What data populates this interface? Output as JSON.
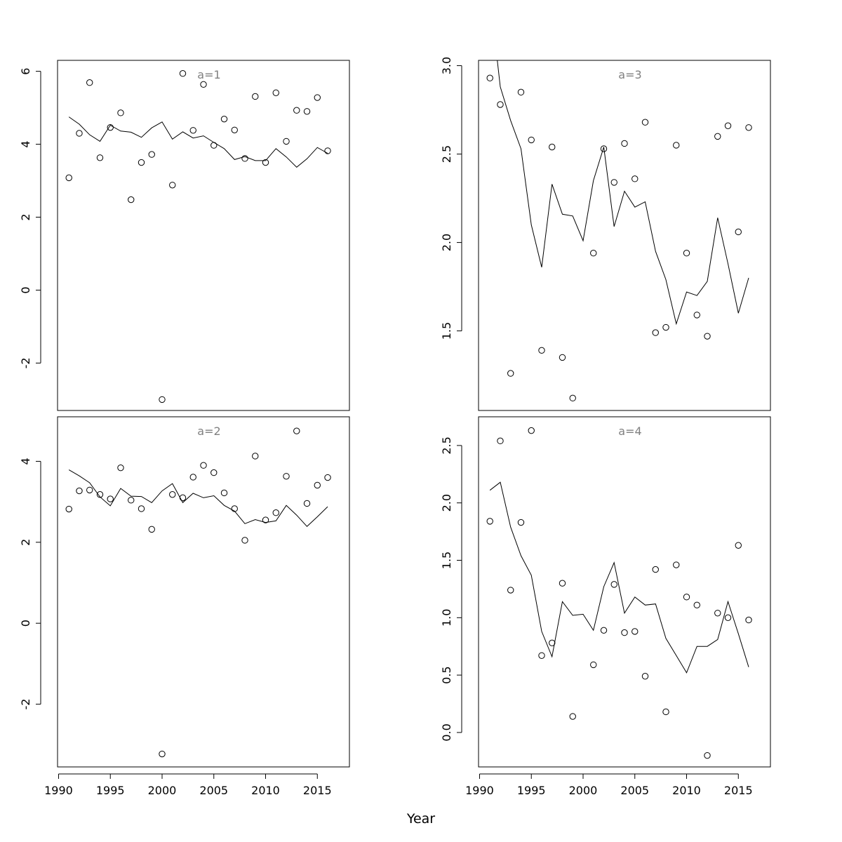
{
  "figure": {
    "xlabel": "Year"
  },
  "chart_data": [
    {
      "type": "scatter",
      "panel_label": "a=1",
      "xlim": [
        1989.9,
        2018.1
      ],
      "ylim": [
        -3.3,
        6.3
      ],
      "xticks": [
        1990,
        1995,
        2000,
        2005,
        2010,
        2015
      ],
      "xtick_labels": [
        "1990",
        "1995",
        "2000",
        "2005",
        "2010",
        "2015"
      ],
      "show_xticks": false,
      "yticks": [
        6,
        4,
        2,
        0,
        -2
      ],
      "ytick_labels": [
        "6",
        "4",
        "2",
        "0",
        "-2"
      ],
      "x": [
        1991,
        1992,
        1993,
        1994,
        1995,
        1996,
        1997,
        1998,
        1999,
        2000,
        2001,
        2002,
        2003,
        2004,
        2005,
        2006,
        2007,
        2008,
        2009,
        2010,
        2011,
        2012,
        2013,
        2014,
        2015,
        2016
      ],
      "observed": [
        3.08,
        4.3,
        5.69,
        3.63,
        4.46,
        4.86,
        2.48,
        3.5,
        3.72,
        -3.0,
        2.88,
        5.94,
        4.38,
        5.64,
        3.97,
        4.69,
        4.39,
        3.61,
        5.31,
        3.5,
        5.41,
        4.08,
        4.93,
        4.9,
        5.28,
        3.82
      ],
      "fitted": [
        4.75,
        4.55,
        4.26,
        4.08,
        4.52,
        4.36,
        4.33,
        4.19,
        4.45,
        4.61,
        4.14,
        4.34,
        4.17,
        4.23,
        4.05,
        3.88,
        3.58,
        3.66,
        3.55,
        3.55,
        3.88,
        3.65,
        3.37,
        3.6,
        3.91,
        3.75
      ]
    },
    {
      "type": "scatter",
      "panel_label": "a=2",
      "xlim": [
        1989.9,
        2018.1
      ],
      "ylim": [
        -3.55,
        5.1
      ],
      "xticks": [
        1990,
        1995,
        2000,
        2005,
        2010,
        2015
      ],
      "xtick_labels": [
        "1990",
        "1995",
        "2000",
        "2005",
        "2010",
        "2015"
      ],
      "show_xticks": true,
      "yticks": [
        4,
        2,
        0,
        -2
      ],
      "ytick_labels": [
        "4",
        "2",
        "0",
        "-2"
      ],
      "x": [
        1991,
        1992,
        1993,
        1994,
        1995,
        1996,
        1997,
        1998,
        1999,
        2000,
        2001,
        2002,
        2003,
        2004,
        2005,
        2006,
        2007,
        2008,
        2009,
        2010,
        2011,
        2012,
        2013,
        2014,
        2015,
        2016
      ],
      "observed": [
        2.82,
        3.27,
        3.29,
        3.18,
        3.07,
        3.84,
        3.04,
        2.83,
        2.32,
        -3.23,
        3.18,
        3.1,
        3.61,
        3.9,
        3.72,
        3.22,
        2.83,
        2.05,
        4.13,
        2.55,
        2.73,
        3.63,
        4.75,
        2.96,
        3.41,
        3.6
      ],
      "fitted": [
        3.79,
        3.64,
        3.47,
        3.12,
        2.9,
        3.33,
        3.14,
        3.13,
        2.98,
        3.27,
        3.45,
        2.98,
        3.21,
        3.1,
        3.15,
        2.91,
        2.77,
        2.46,
        2.56,
        2.49,
        2.53,
        2.91,
        2.67,
        2.39,
        2.63,
        2.88
      ]
    },
    {
      "type": "scatter",
      "panel_label": "a=3",
      "xlim": [
        1989.9,
        2018.1
      ],
      "ylim": [
        1.05,
        3.03
      ],
      "xticks": [
        1990,
        1995,
        2000,
        2005,
        2010,
        2015
      ],
      "xtick_labels": [
        "1990",
        "1995",
        "2000",
        "2005",
        "2010",
        "2015"
      ],
      "show_xticks": false,
      "yticks": [
        3.0,
        2.5,
        2.0,
        1.5
      ],
      "ytick_labels": [
        "3.0",
        "2.5",
        "2.0",
        "1.5"
      ],
      "x": [
        1991,
        1992,
        1993,
        1994,
        1995,
        1996,
        1997,
        1998,
        1999,
        2000,
        2001,
        2002,
        2003,
        2004,
        2005,
        2006,
        2007,
        2008,
        2009,
        2010,
        2011,
        2012,
        2013,
        2014,
        2015,
        2016
      ],
      "observed": [
        2.93,
        2.78,
        1.26,
        2.85,
        2.58,
        1.39,
        2.54,
        1.35,
        1.12,
        null,
        1.94,
        2.53,
        2.34,
        2.56,
        2.36,
        2.68,
        1.49,
        1.52,
        2.55,
        1.94,
        1.59,
        1.47,
        2.6,
        2.66,
        2.06,
        2.65
      ],
      "fitted": [
        3.4,
        2.88,
        2.69,
        2.53,
        2.1,
        1.86,
        2.33,
        2.16,
        2.15,
        2.01,
        2.35,
        2.54,
        2.09,
        2.29,
        2.2,
        2.23,
        1.95,
        1.79,
        1.54,
        1.72,
        1.7,
        1.78,
        2.14,
        1.88,
        1.6,
        1.8
      ]
    },
    {
      "type": "scatter",
      "panel_label": "a=4",
      "xlim": [
        1989.9,
        2018.1
      ],
      "ylim": [
        -0.3,
        2.75
      ],
      "xticks": [
        1990,
        1995,
        2000,
        2005,
        2010,
        2015
      ],
      "xtick_labels": [
        "1990",
        "1995",
        "2000",
        "2005",
        "2010",
        "2015"
      ],
      "show_xticks": true,
      "yticks": [
        2.5,
        2.0,
        1.5,
        1.0,
        0.5,
        0.0
      ],
      "ytick_labels": [
        "2.5",
        "2.0",
        "1.5",
        "1.0",
        "0.5",
        "0.0"
      ],
      "x": [
        1991,
        1992,
        1993,
        1994,
        1995,
        1996,
        1997,
        1998,
        1999,
        2000,
        2001,
        2002,
        2003,
        2004,
        2005,
        2006,
        2007,
        2008,
        2009,
        2010,
        2011,
        2012,
        2013,
        2014,
        2015,
        2016
      ],
      "observed": [
        1.84,
        2.54,
        1.24,
        1.83,
        2.63,
        0.67,
        0.78,
        1.3,
        0.14,
        null,
        0.59,
        0.89,
        1.29,
        0.87,
        0.88,
        0.49,
        1.42,
        0.18,
        1.46,
        1.18,
        1.11,
        -0.2,
        1.04,
        1.0,
        1.63,
        0.98
      ],
      "fitted": [
        2.11,
        2.18,
        1.79,
        1.54,
        1.37,
        0.88,
        0.66,
        1.14,
        1.02,
        1.03,
        0.89,
        1.27,
        1.48,
        1.04,
        1.18,
        1.11,
        1.12,
        0.82,
        0.67,
        0.52,
        0.75,
        0.75,
        0.81,
        1.14,
        0.86,
        0.57
      ]
    }
  ]
}
